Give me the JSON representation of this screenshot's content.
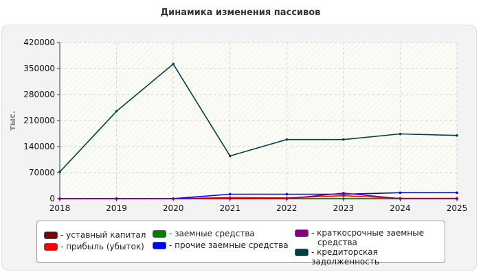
{
  "chart_data": {
    "type": "line",
    "title": "Динамика изменения пассивов",
    "ylabel": "тыс.",
    "xlabel": "",
    "x": [
      2018,
      2019,
      2020,
      2021,
      2022,
      2023,
      2024,
      2025
    ],
    "xticks": [
      "2018",
      "2019",
      "2020",
      "2021",
      "2022",
      "2023",
      "2024",
      "2025"
    ],
    "yticks": [
      "0",
      "70000",
      "140000",
      "210000",
      "280000",
      "350000",
      "420000"
    ],
    "ylim": [
      0,
      420000
    ],
    "grid": true,
    "legend_position": "bottom",
    "series": [
      {
        "name": "- уставный капитал",
        "color": "#7a0000",
        "values": [
          0,
          0,
          0,
          0,
          0,
          0,
          0,
          0
        ]
      },
      {
        "name": "- прибыль (убыток)",
        "color": "#ff0000",
        "values": [
          0,
          0,
          0,
          3000,
          2000,
          8000,
          1000,
          1000
        ]
      },
      {
        "name": "- заемные средства",
        "color": "#008000",
        "values": [
          0,
          0,
          0,
          0,
          0,
          0,
          0,
          0
        ]
      },
      {
        "name": "- прочие заемные средства",
        "color": "#0000ff",
        "values": [
          0,
          0,
          0,
          12000,
          12000,
          12000,
          16000,
          16000
        ]
      },
      {
        "name": "- краткосрочные заемные средства",
        "name_lines": [
          "- краткосрочные заемные",
          "средства"
        ],
        "color": "#800080",
        "values": [
          0,
          0,
          0,
          0,
          0,
          15000,
          0,
          0
        ]
      },
      {
        "name": "- кредиторская задолженность",
        "color": "#004040",
        "values": [
          72000,
          235000,
          362000,
          115000,
          159000,
          159000,
          174000,
          170000
        ]
      }
    ]
  }
}
